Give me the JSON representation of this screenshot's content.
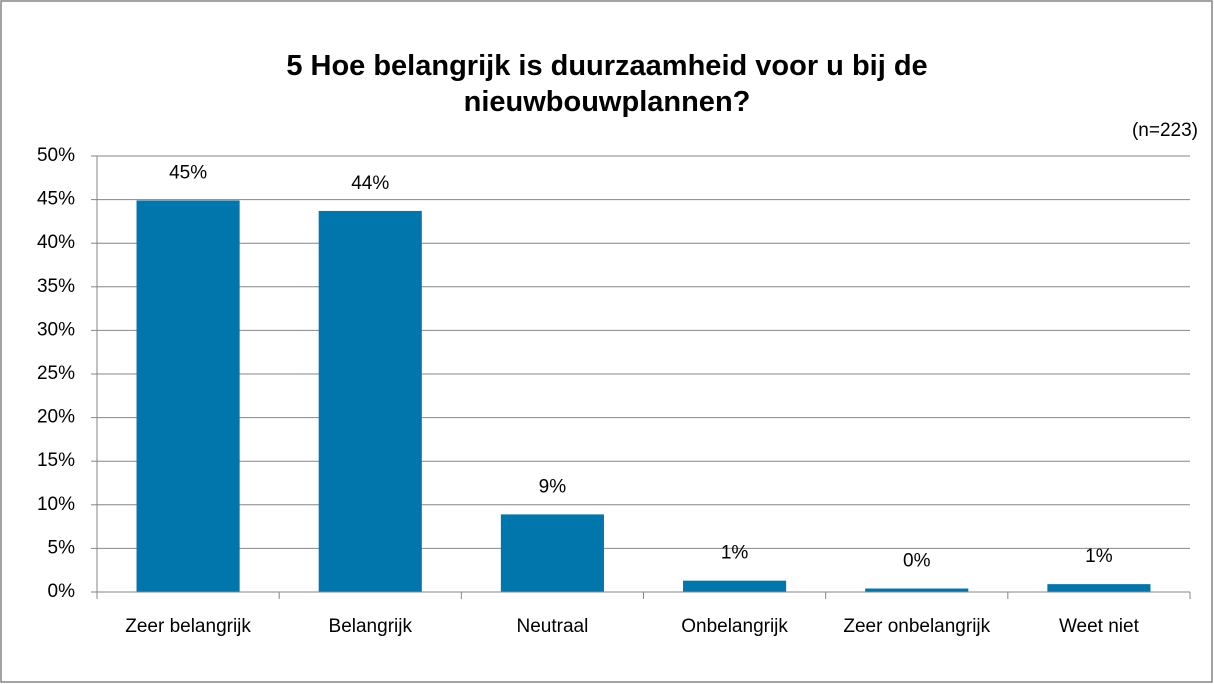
{
  "chart_data": {
    "type": "bar",
    "title": "5 Hoe belangrijk is duurzaamheid voor u bij de nieuwbouwplannen?",
    "subtitle": "(n=223)",
    "categories": [
      "Zeer belangrijk",
      "Belangrijk",
      "Neutraal",
      "Onbelangrijk",
      "Zeer onbelangrijk",
      "Weet niet"
    ],
    "values": [
      44.9,
      43.7,
      8.9,
      1.3,
      0.4,
      0.9
    ],
    "value_labels": [
      "45%",
      "44%",
      "9%",
      "1%",
      "0%",
      "1%"
    ],
    "color": "#0076ad",
    "ylim": [
      0,
      50
    ],
    "yticks": [
      {
        "value": 0,
        "label": "0%"
      },
      {
        "value": 5,
        "label": "5%"
      },
      {
        "value": 10,
        "label": "10%"
      },
      {
        "value": 15,
        "label": "15%"
      },
      {
        "value": 20,
        "label": "20%"
      },
      {
        "value": 25,
        "label": "25%"
      },
      {
        "value": 30,
        "label": "30%"
      },
      {
        "value": 35,
        "label": "35%"
      },
      {
        "value": 40,
        "label": "40%"
      },
      {
        "value": 45,
        "label": "45%"
      },
      {
        "value": 50,
        "label": "50%"
      }
    ],
    "grid": true
  }
}
